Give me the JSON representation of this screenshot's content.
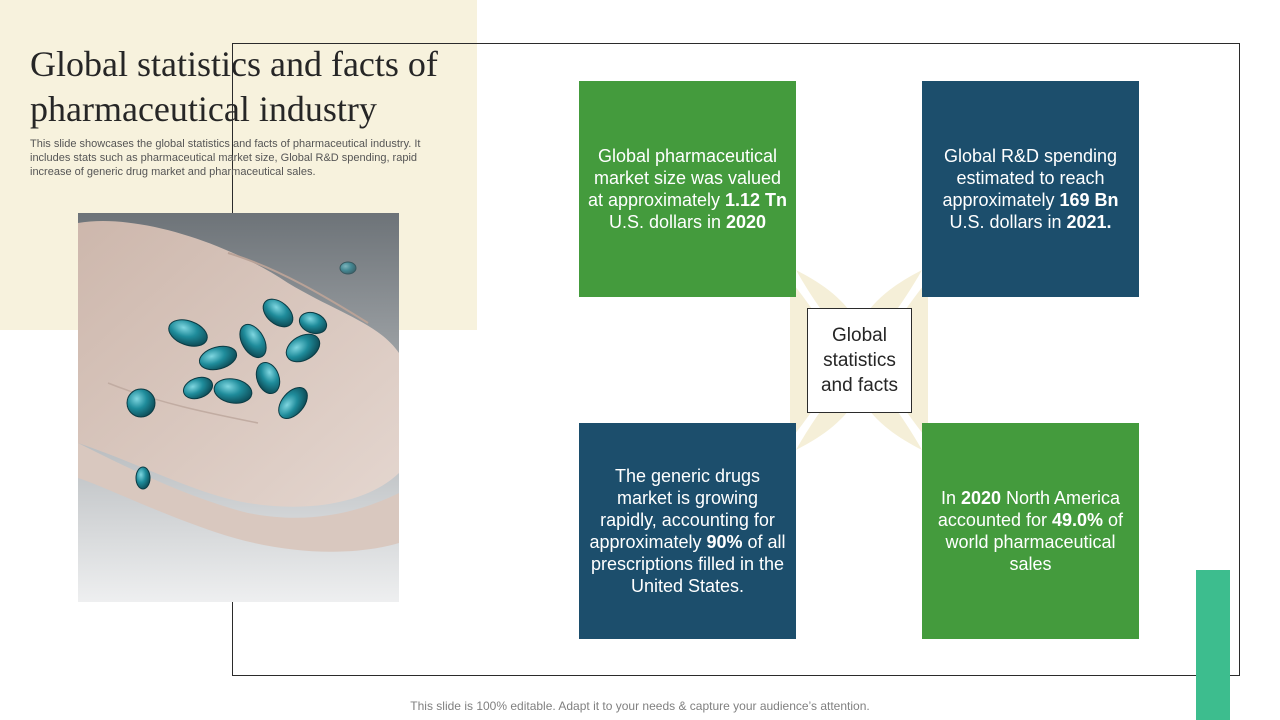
{
  "slide": {
    "title": "Global statistics and facts of pharmaceutical industry",
    "subtitle": "This slide showcases the global statistics and facts of pharmaceutical industry. It includes stats such as pharmaceutical market size, Global R&D spending, rapid increase of generic drug market and pharmaceutical sales.",
    "footer": "This slide is 100% editable. Adapt it to your needs & capture your audience’s attention."
  },
  "center_label": "Global statistics and facts",
  "facts": {
    "top_left": {
      "t1": "Global pharmaceutical market size was valued at approximately ",
      "b1": "1.12 Tn",
      "t2": " U.S. dollars in ",
      "b2": "2020"
    },
    "top_right": {
      "t1": "Global R&D spending estimated to reach approximately ",
      "b1": "169 Bn",
      "t2": " U.S. dollars in ",
      "b2": "2021."
    },
    "bottom_left": {
      "t1": "The generic drugs market is growing rapidly, accounting for approximately ",
      "b1": "90%",
      "t2": " of all prescriptions filled in the United States."
    },
    "bottom_right": {
      "t1": "In ",
      "b1": "2020",
      "t2": " North America accounted for ",
      "b2": "49.0%",
      "t3": " of world pharmaceutical sales"
    }
  },
  "colors": {
    "green": "#449b3d",
    "blue": "#1c4e6c",
    "cream": "#f7f2dd",
    "teal_accent": "#3dbd8e"
  }
}
